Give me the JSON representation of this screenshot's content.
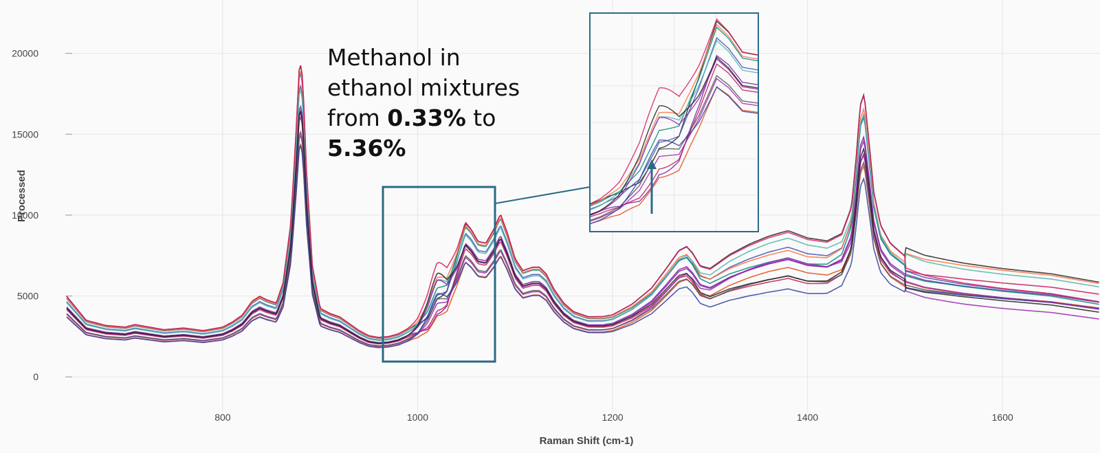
{
  "annotation": {
    "line1": "Methanol in",
    "line2": "ethanol mixtures",
    "from_word": "from",
    "from_value": "0.33%",
    "to_word": "to",
    "to_value": "5.36%"
  },
  "colors": {
    "inset_border": "#2a6a86",
    "arrow": "#2a6a86",
    "grid": "#e6e6e6",
    "series": [
      "#7b1fa2",
      "#222222",
      "#c2185b",
      "#e64a19",
      "#3f51b5",
      "#00897b",
      "#9c27b0",
      "#555555",
      "#ff7043",
      "#4db6ac",
      "#303f9f",
      "#8e24aa",
      "#d81b60",
      "#212121"
    ]
  },
  "chart_data": {
    "type": "line",
    "title": "",
    "xlabel": "Raman Shift (cm-1)",
    "ylabel": "Processed",
    "xlim": [
      640,
      1700
    ],
    "ylim": [
      -2200,
      23300
    ],
    "xticks": [
      800,
      1000,
      1200,
      1400,
      1600
    ],
    "yticks": [
      0,
      5000,
      10000,
      15000,
      20000
    ],
    "grid": true,
    "n_series": 14,
    "baseline_spectrum": {
      "x": [
        640,
        660,
        680,
        700,
        710,
        720,
        740,
        760,
        780,
        800,
        810,
        820,
        830,
        838,
        845,
        855,
        862,
        870,
        876,
        879,
        882,
        886,
        892,
        900,
        910,
        920,
        930,
        940,
        950,
        960,
        970,
        980,
        990,
        1000,
        1010,
        1020,
        1030,
        1040,
        1049,
        1055,
        1062,
        1070,
        1078,
        1085,
        1092,
        1100,
        1108,
        1118,
        1125,
        1132,
        1140,
        1150,
        1160,
        1175,
        1190,
        1200,
        1220,
        1240,
        1255,
        1268,
        1276,
        1282,
        1290,
        1300,
        1320,
        1340,
        1360,
        1380,
        1400,
        1420,
        1435,
        1445,
        1450,
        1454,
        1458,
        1462,
        1468,
        1475,
        1485,
        1500,
        1520,
        1560,
        1600,
        1650,
        1700
      ],
      "y": [
        4700,
        3300,
        3000,
        2900,
        3050,
        2950,
        2750,
        2850,
        2700,
        2900,
        3200,
        3600,
        4400,
        4700,
        4500,
        4300,
        5500,
        9000,
        15000,
        18500,
        17500,
        12000,
        6500,
        4000,
        3700,
        3500,
        3100,
        2700,
        2400,
        2300,
        2350,
        2500,
        2800,
        3200,
        4000,
        5500,
        5600,
        7200,
        9000,
        8600,
        7900,
        7800,
        8600,
        9500,
        8400,
        6900,
        6200,
        6400,
        6400,
        6000,
        5100,
        4300,
        3800,
        3500,
        3500,
        3600,
        4200,
        5100,
        6200,
        7200,
        7400,
        7000,
        6200,
        6000,
        6700,
        7200,
        7600,
        7900,
        7500,
        7400,
        7900,
        9500,
        12500,
        15500,
        16200,
        14000,
        10500,
        8600,
        7600,
        6900,
        6500,
        6100,
        5800,
        5500,
        5000
      ]
    },
    "methanol_band": {
      "position": 1020,
      "concentration_range": [
        "0.33%",
        "5.36%"
      ]
    }
  }
}
